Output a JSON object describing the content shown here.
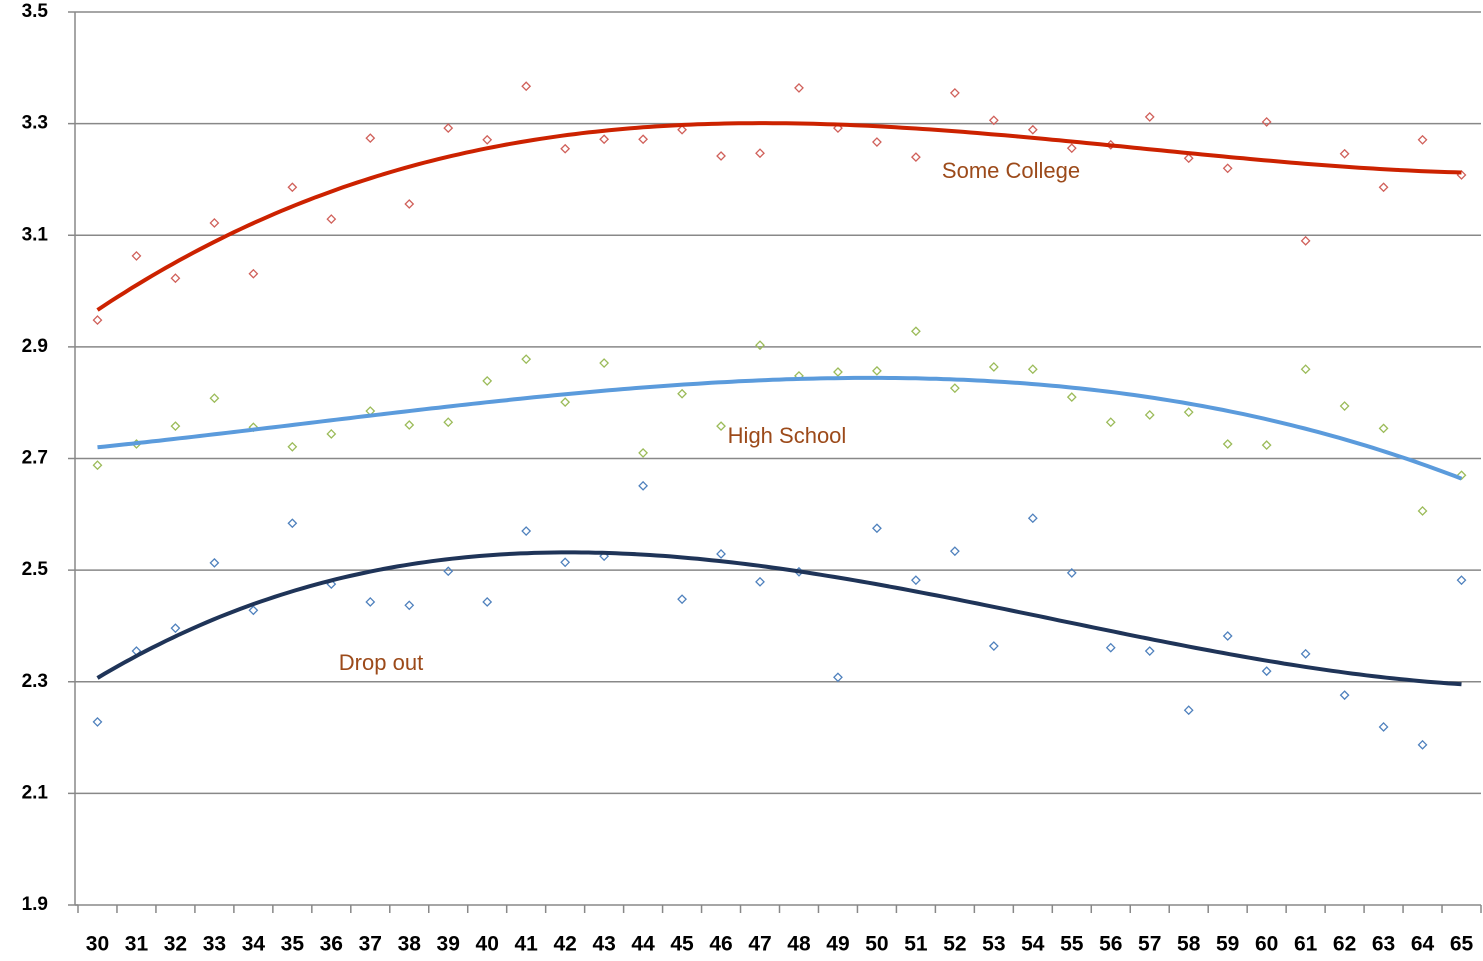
{
  "chart_data": {
    "type": "scatter",
    "categories": [
      30,
      31,
      32,
      33,
      34,
      35,
      36,
      37,
      38,
      39,
      40,
      41,
      42,
      43,
      44,
      45,
      46,
      47,
      48,
      49,
      50,
      51,
      52,
      53,
      54,
      55,
      56,
      57,
      58,
      59,
      60,
      61,
      62,
      63,
      64,
      65
    ],
    "ylim": [
      1.9,
      3.5
    ],
    "yticks": [
      1.9,
      2.1,
      2.3,
      2.5,
      2.7,
      2.9,
      3.1,
      3.3,
      3.5
    ],
    "grid": true,
    "trendline": {
      "type": "polynomial",
      "order": 3
    },
    "series": [
      {
        "name": "Some College",
        "color": "#d0605a",
        "trend_color": "#cc2200",
        "values": [
          2.948,
          3.063,
          3.023,
          3.122,
          3.031,
          3.186,
          3.129,
          3.274,
          3.156,
          3.292,
          3.271,
          3.367,
          3.255,
          3.272,
          3.272,
          3.289,
          3.242,
          3.247,
          3.364,
          3.292,
          3.267,
          3.24,
          3.355,
          3.306,
          3.289,
          3.256,
          3.262,
          3.312,
          3.238,
          3.22,
          3.303,
          3.09,
          3.246,
          3.186,
          3.271,
          3.208
        ]
      },
      {
        "name": "High School",
        "color": "#9bbb59",
        "trend_color": "#5b9bdc",
        "values": [
          2.688,
          2.726,
          2.758,
          2.808,
          2.756,
          2.721,
          2.744,
          2.785,
          2.76,
          2.765,
          2.839,
          2.878,
          2.801,
          2.871,
          2.71,
          2.816,
          2.758,
          2.903,
          2.848,
          2.855,
          2.857,
          2.928,
          2.826,
          2.864,
          2.86,
          2.81,
          2.765,
          2.778,
          2.783,
          2.726,
          2.724,
          2.86,
          2.794,
          2.754,
          2.606,
          2.67
        ]
      },
      {
        "name": "Drop out",
        "color": "#4f81bd",
        "trend_color": "#1f3458",
        "values": [
          2.228,
          2.355,
          2.396,
          2.513,
          2.428,
          2.584,
          2.475,
          2.443,
          2.437,
          2.498,
          2.443,
          2.57,
          2.514,
          2.525,
          2.651,
          2.448,
          2.529,
          2.479,
          2.497,
          2.308,
          2.575,
          2.482,
          2.534,
          2.364,
          2.593,
          2.495,
          2.361,
          2.355,
          2.249,
          2.382,
          2.319,
          2.35,
          2.276,
          2.219,
          2.187,
          2.482
        ]
      }
    ]
  }
}
